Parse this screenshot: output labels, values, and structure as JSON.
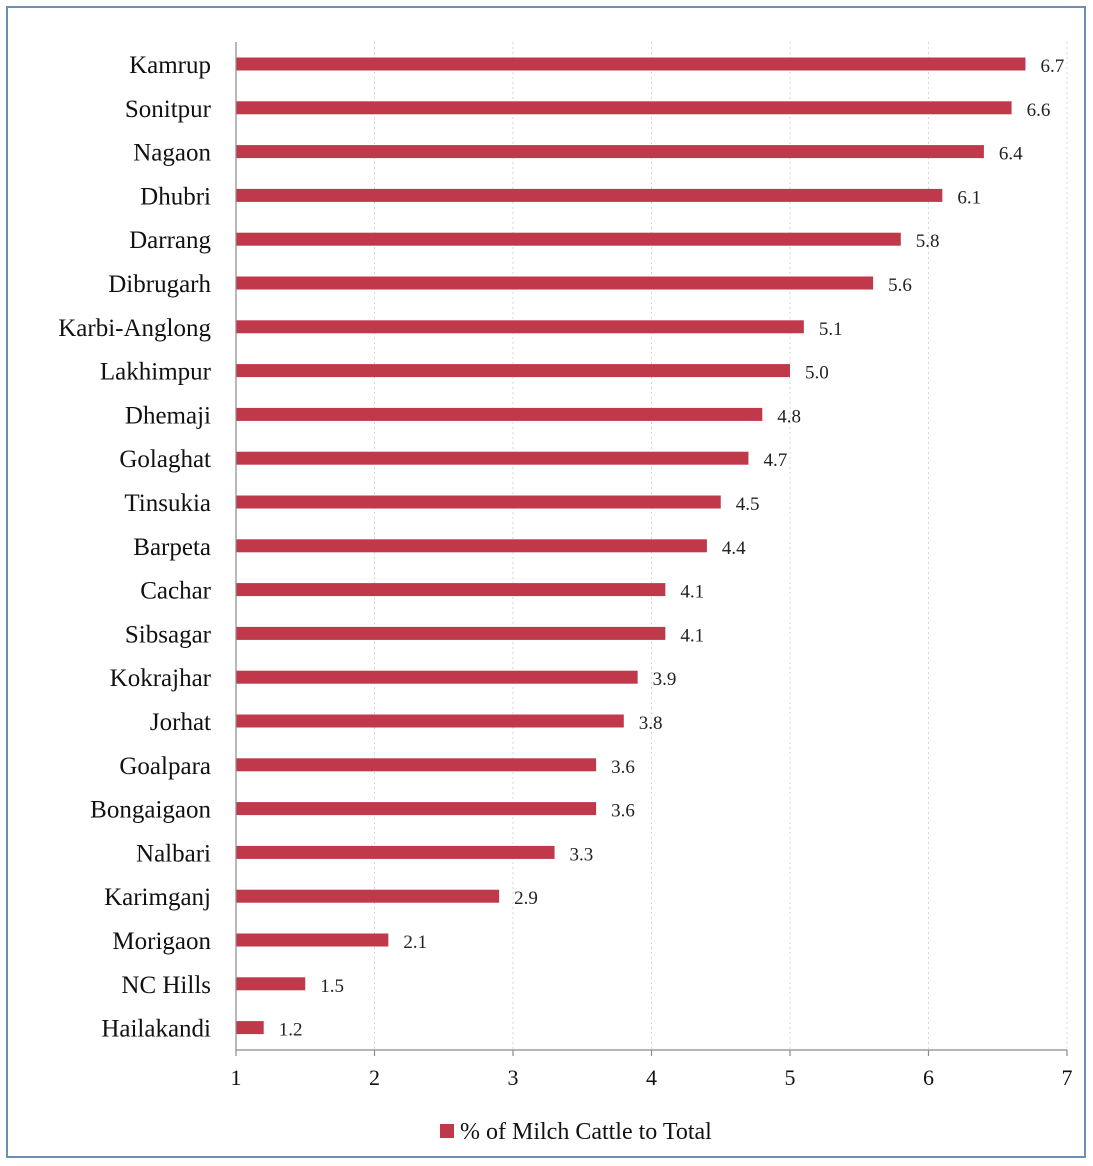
{
  "chart_data": {
    "type": "bar",
    "orientation": "horizontal",
    "title": "",
    "xlabel": "",
    "ylabel": "",
    "xlim": [
      1,
      7
    ],
    "x_ticks": [
      1,
      2,
      3,
      4,
      5,
      6,
      7
    ],
    "grid": true,
    "legend_position": "bottom",
    "bar_color": "#c0394b",
    "categories": [
      "Kamrup",
      "Sonitpur",
      "Nagaon",
      "Dhubri",
      "Darrang",
      "Dibrugarh",
      "Karbi-Anglong",
      "Lakhimpur",
      "Dhemaji",
      "Golaghat",
      "Tinsukia",
      "Barpeta",
      "Cachar",
      "Sibsagar",
      "Kokrajhar",
      "Jorhat",
      "Goalpara",
      "Bongaigaon",
      "Nalbari",
      "Karimganj",
      "Morigaon",
      "NC Hills",
      "Hailakandi"
    ],
    "series": [
      {
        "name": "% of Milch Cattle to Total",
        "values": [
          6.7,
          6.6,
          6.4,
          6.1,
          5.8,
          5.6,
          5.1,
          5.0,
          4.8,
          4.7,
          4.5,
          4.4,
          4.1,
          4.1,
          3.9,
          3.8,
          3.6,
          3.6,
          3.3,
          2.9,
          2.1,
          1.5,
          1.2
        ],
        "value_labels": [
          "6.7",
          "6.6",
          "6.4",
          "6.1",
          "5.8",
          "5.6",
          "5.1",
          "5.0",
          "4.8",
          "4.7",
          "4.5",
          "4.4",
          "4.1",
          "4.1",
          "3.9",
          "3.8",
          "3.6",
          "3.6",
          "3.3",
          "2.9",
          "2.1",
          "1.5",
          "1.2"
        ]
      }
    ]
  }
}
